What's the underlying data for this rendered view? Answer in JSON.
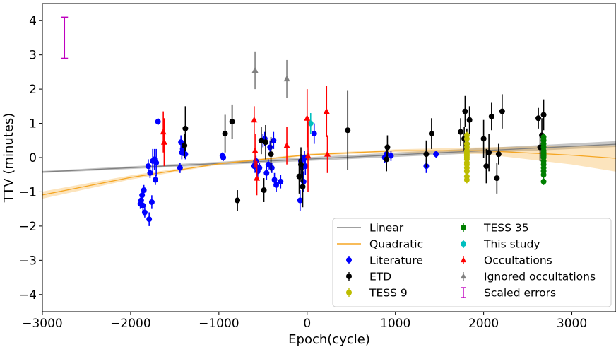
{
  "chart_data": {
    "type": "scatter",
    "title": "",
    "xlabel": "Epoch(cycle)",
    "ylabel": "TTV (minutes)",
    "xlim": [
      -3000,
      3500
    ],
    "ylim": [
      -4.5,
      4.5
    ],
    "xticks": [
      -3000,
      -2000,
      -1000,
      0,
      1000,
      2000,
      3000
    ],
    "xtick_labels": [
      "−3000",
      "−2000",
      "−1000",
      "0",
      "1000",
      "2000",
      "3000"
    ],
    "yticks": [
      -4,
      -3,
      -2,
      -1,
      0,
      1,
      2,
      3,
      4
    ],
    "ytick_labels": [
      "−4",
      "−3",
      "−2",
      "−1",
      "0",
      "1",
      "2",
      "3",
      "4"
    ],
    "grid": false,
    "legend_position": "lower-right",
    "models": [
      {
        "name": "Linear",
        "color": "#808080",
        "x": [
          -3000,
          3500
        ],
        "y": [
          -0.42,
          0.39
        ],
        "band_upper": [
          -0.39,
          0.48
        ],
        "band_lower": [
          -0.45,
          0.31
        ]
      },
      {
        "name": "Quadratic",
        "color": "#f5a623",
        "x": [
          -3000,
          -2000,
          -1000,
          0,
          1000,
          2000,
          3000,
          3500
        ],
        "y": [
          -1.09,
          -0.58,
          -0.18,
          0.08,
          0.2,
          0.2,
          0.07,
          -0.02
        ],
        "band_upper": [
          -0.99,
          -0.52,
          -0.15,
          0.11,
          0.24,
          0.3,
          0.34,
          0.36
        ],
        "band_lower": [
          -1.2,
          -0.64,
          -0.21,
          0.05,
          0.16,
          0.1,
          -0.2,
          -0.41
        ]
      }
    ],
    "series": [
      {
        "name": "Literature",
        "color": "#0000ff",
        "marker": "circle",
        "x": [
          -1890,
          -1880,
          -1870,
          -1860,
          -1850,
          -1840,
          -1800,
          -1790,
          -1780,
          -1760,
          -1750,
          -1730,
          -1720,
          -1710,
          -1690,
          -1440,
          -1430,
          -1420,
          -1410,
          -1380,
          -960,
          -950,
          -600,
          -590,
          -580,
          -560,
          -540,
          -500,
          -480,
          -460,
          -440,
          -420,
          -400,
          -380,
          -370,
          -350,
          -300,
          -80,
          -70,
          -60,
          -40,
          -30,
          -20,
          80,
          880,
          900,
          950,
          1350,
          1460
        ],
        "y": [
          -1.35,
          -1.25,
          -1.1,
          -1.4,
          -0.95,
          -1.6,
          -0.25,
          -1.8,
          -0.45,
          -1.3,
          -0.1,
          -0.05,
          -0.65,
          -0.15,
          1.05,
          -0.3,
          0.45,
          0.15,
          0.25,
          0.1,
          0.05,
          0.0,
          -0.25,
          -0.2,
          -0.1,
          -0.4,
          -0.3,
          0.5,
          0.55,
          -0.45,
          -0.2,
          0.3,
          -0.3,
          0.5,
          -0.65,
          -0.8,
          -0.7,
          -1.25,
          -0.1,
          -0.3,
          -0.7,
          0.0,
          -0.25,
          0.7,
          0.0,
          0.1,
          0.05,
          -0.25,
          0.1
        ],
        "err": [
          0.15,
          0.15,
          0.15,
          0.15,
          0.15,
          0.15,
          0.2,
          0.2,
          0.15,
          0.2,
          0.35,
          0.3,
          0.15,
          0.4,
          0.1,
          0.15,
          0.2,
          0.2,
          0.2,
          0.15,
          0.1,
          0.1,
          0.2,
          0.15,
          0.15,
          0.2,
          0.15,
          0.2,
          0.2,
          0.2,
          0.15,
          0.2,
          0.15,
          0.25,
          0.2,
          0.2,
          0.2,
          0.3,
          0.2,
          0.2,
          0.3,
          0.2,
          0.25,
          0.3,
          0.15,
          0.15,
          0.15,
          0.2,
          0.1
        ]
      },
      {
        "name": "ETD",
        "color": "#000000",
        "marker": "circle",
        "x": [
          -1390,
          -1380,
          -930,
          -850,
          -790,
          -520,
          -490,
          -470,
          -410,
          -90,
          -70,
          -50,
          460,
          900,
          910,
          1350,
          1410,
          1740,
          1780,
          1790,
          1810,
          1840,
          2000,
          2030,
          2060,
          2090,
          2150,
          2170,
          2210,
          2620,
          2640,
          2660,
          2680
        ],
        "y": [
          0.35,
          0.85,
          0.7,
          1.05,
          -1.25,
          0.5,
          -0.95,
          0.45,
          0.1,
          -0.55,
          -0.2,
          -0.85,
          0.8,
          -0.05,
          0.3,
          0.1,
          0.7,
          0.75,
          0.55,
          1.35,
          0.4,
          1.1,
          0.55,
          -0.25,
          0.15,
          1.2,
          -0.6,
          0.1,
          1.35,
          1.15,
          0.3,
          0.65,
          1.25
        ],
        "err": [
          0.35,
          0.65,
          0.55,
          0.5,
          0.3,
          0.4,
          0.35,
          0.5,
          0.5,
          0.5,
          0.5,
          0.6,
          1.15,
          0.35,
          0.35,
          0.4,
          0.45,
          0.4,
          0.35,
          0.45,
          0.45,
          0.4,
          0.55,
          0.5,
          0.55,
          0.4,
          0.45,
          0.3,
          0.5,
          0.3,
          0.4,
          0.5,
          0.45
        ]
      },
      {
        "name": "TESS 9",
        "color": "#bdbd00",
        "marker": "circle",
        "x": [
          1810,
          1810,
          1810,
          1810,
          1810,
          1810,
          1810,
          1810,
          1810,
          1810,
          1810,
          1810,
          1810,
          1810,
          1810,
          1810
        ],
        "y": [
          0.65,
          0.55,
          0.4,
          0.3,
          0.2,
          0.1,
          0.0,
          -0.05,
          -0.15,
          -0.2,
          -0.3,
          -0.4,
          -0.55,
          -0.65,
          0.15,
          0.05
        ],
        "err": [
          0.1,
          0.1,
          0.1,
          0.1,
          0.1,
          0.1,
          0.1,
          0.1,
          0.1,
          0.1,
          0.1,
          0.1,
          0.1,
          0.1,
          0.1,
          0.1
        ]
      },
      {
        "name": "TESS 35",
        "color": "#007f00",
        "marker": "circle",
        "x": [
          2680,
          2680,
          2680,
          2680,
          2680,
          2680,
          2680,
          2680,
          2680,
          2680,
          2680,
          2680,
          2680,
          2680,
          2680
        ],
        "y": [
          0.6,
          0.5,
          0.4,
          0.3,
          0.2,
          0.1,
          0.0,
          -0.1,
          -0.2,
          -0.3,
          -0.4,
          -0.5,
          -0.7,
          0.15,
          0.05
        ],
        "err": [
          0.1,
          0.1,
          0.1,
          0.1,
          0.1,
          0.1,
          0.1,
          0.1,
          0.1,
          0.1,
          0.1,
          0.1,
          0.1,
          0.1,
          0.1
        ]
      },
      {
        "name": "This study",
        "color": "#00bfbf",
        "marker": "circle",
        "x": [
          40
        ],
        "y": [
          1.0
        ],
        "err": [
          0.3
        ]
      },
      {
        "name": "Occultations",
        "color": "#ff0000",
        "marker": "triangle",
        "x": [
          -1630,
          -1620,
          -600,
          -590,
          -570,
          -230,
          0,
          10,
          220,
          230
        ],
        "y": [
          0.75,
          0.45,
          1.1,
          0.2,
          -0.6,
          0.35,
          1.15,
          0.05,
          1.35,
          0.1
        ],
        "err": [
          0.6,
          0.7,
          0.4,
          0.5,
          0.5,
          0.55,
          0.85,
          1.05,
          0.75,
          0.55
        ]
      },
      {
        "name": "Ignored occultations",
        "color": "#808080",
        "marker": "triangle",
        "x": [
          -590,
          -230
        ],
        "y": [
          2.55,
          2.3
        ],
        "err": [
          0.55,
          0.55
        ]
      }
    ],
    "scaled_errors": {
      "name": "Scaled errors",
      "color": "#bf00bf",
      "x": -2750,
      "y": 3.5,
      "err": 0.6
    },
    "legend": [
      {
        "name": "Linear",
        "color": "#808080",
        "kind": "line"
      },
      {
        "name": "Quadratic",
        "color": "#f5a623",
        "kind": "line"
      },
      {
        "name": "Literature",
        "color": "#0000ff",
        "kind": "circle"
      },
      {
        "name": "ETD",
        "color": "#000000",
        "kind": "circle"
      },
      {
        "name": "TESS 9",
        "color": "#bdbd00",
        "kind": "circle"
      },
      {
        "name": "TESS 35",
        "color": "#007f00",
        "kind": "circle"
      },
      {
        "name": "This study",
        "color": "#00bfbf",
        "kind": "circle"
      },
      {
        "name": "Occultations",
        "color": "#ff0000",
        "kind": "triangle"
      },
      {
        "name": "Ignored occultations",
        "color": "#808080",
        "kind": "triangle"
      },
      {
        "name": "Scaled errors",
        "color": "#bf00bf",
        "kind": "errorbar"
      }
    ]
  }
}
